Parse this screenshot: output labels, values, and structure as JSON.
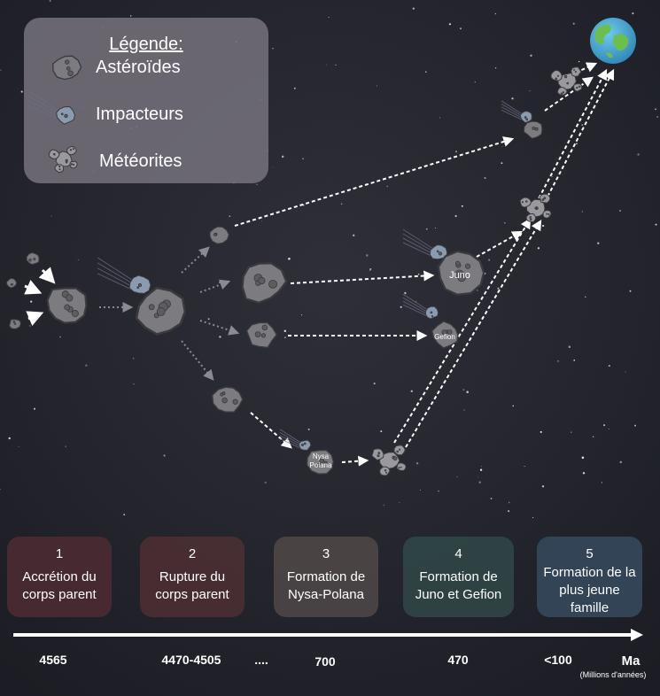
{
  "legend": {
    "title": "Légende:",
    "items": [
      "Astéroïdes",
      "Impacteurs",
      "Météorites"
    ]
  },
  "labels": {
    "juno": "Juno",
    "gefion": "Gefion",
    "nysa_polana": [
      "Nysa",
      "Polana"
    ]
  },
  "stages": [
    {
      "number": "1",
      "lines": [
        "Accrétion du",
        "corps parent"
      ]
    },
    {
      "number": "2",
      "lines": [
        "Rupture du",
        "corps parent"
      ]
    },
    {
      "number": "3",
      "lines": [
        "Formation de",
        "Nysa-Polana"
      ]
    },
    {
      "number": "4",
      "lines": [
        "Formation de",
        "Juno et Gefion"
      ]
    },
    {
      "number": "5",
      "lines": [
        "Formation de la",
        "plus jeune",
        "famille"
      ]
    }
  ],
  "timeline": {
    "labels": [
      "4565",
      "4470-4505",
      "....",
      "700",
      "470",
      "<100"
    ],
    "unit": "Ma",
    "unit_note": "(Millions d'années)"
  }
}
